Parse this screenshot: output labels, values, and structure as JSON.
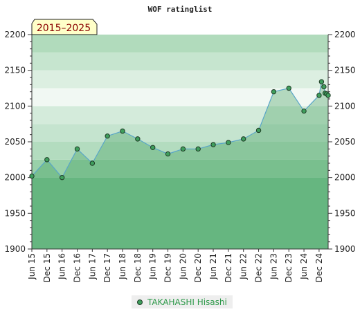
{
  "chart_data": {
    "type": "area",
    "title": "WOF ratinglist",
    "badge": "2015–2025",
    "ylim": [
      1900,
      2200
    ],
    "yticks": [
      1900,
      1950,
      2000,
      2050,
      2100,
      2150,
      2200
    ],
    "xlim": [
      2015.5,
      2025.3
    ],
    "xticks": [
      {
        "label": "Jun 15",
        "t": 2015.5
      },
      {
        "label": "Dec 15",
        "t": 2016.0
      },
      {
        "label": "Jun 16",
        "t": 2016.5
      },
      {
        "label": "Dec 16",
        "t": 2017.0
      },
      {
        "label": "Jun 17",
        "t": 2017.5
      },
      {
        "label": "Dec 17",
        "t": 2018.0
      },
      {
        "label": "Jun 18",
        "t": 2018.5
      },
      {
        "label": "Dec 18",
        "t": 2019.0
      },
      {
        "label": "Jun 19",
        "t": 2019.5
      },
      {
        "label": "Dec 19",
        "t": 2020.0
      },
      {
        "label": "Jun 20",
        "t": 2020.5
      },
      {
        "label": "Dec 20",
        "t": 2021.0
      },
      {
        "label": "Jun 21",
        "t": 2021.5
      },
      {
        "label": "Dec 21",
        "t": 2022.0
      },
      {
        "label": "Jun 22",
        "t": 2022.5
      },
      {
        "label": "Dec 22",
        "t": 2023.0
      },
      {
        "label": "Jun 23",
        "t": 2023.5
      },
      {
        "label": "Dec 23",
        "t": 2024.0
      },
      {
        "label": "Jun 24",
        "t": 2024.5
      },
      {
        "label": "Dec 24",
        "t": 2025.0
      }
    ],
    "series": [
      {
        "name": "TAKAHASHI Hisashi",
        "color": "#3f9e5d",
        "points": [
          {
            "t": 2015.5,
            "v": 2002
          },
          {
            "t": 2016.0,
            "v": 2025
          },
          {
            "t": 2016.5,
            "v": 2000
          },
          {
            "t": 2017.0,
            "v": 2040
          },
          {
            "t": 2017.5,
            "v": 2020
          },
          {
            "t": 2018.0,
            "v": 2058
          },
          {
            "t": 2018.5,
            "v": 2065
          },
          {
            "t": 2019.0,
            "v": 2054
          },
          {
            "t": 2019.5,
            "v": 2042
          },
          {
            "t": 2020.0,
            "v": 2033
          },
          {
            "t": 2020.5,
            "v": 2040
          },
          {
            "t": 2021.0,
            "v": 2040
          },
          {
            "t": 2021.5,
            "v": 2046
          },
          {
            "t": 2022.0,
            "v": 2049
          },
          {
            "t": 2022.5,
            "v": 2054
          },
          {
            "t": 2023.0,
            "v": 2066
          },
          {
            "t": 2023.5,
            "v": 2120
          },
          {
            "t": 2024.0,
            "v": 2125
          },
          {
            "t": 2024.5,
            "v": 2093
          },
          {
            "t": 2025.0,
            "v": 2115
          },
          {
            "t": 2025.08,
            "v": 2134
          },
          {
            "t": 2025.16,
            "v": 2127
          },
          {
            "t": 2025.2,
            "v": 2118
          },
          {
            "t": 2025.25,
            "v": 2117
          },
          {
            "t": 2025.3,
            "v": 2115
          }
        ]
      }
    ],
    "bands": [
      {
        "from": 1900,
        "to": 2000,
        "color": "#7cc494"
      },
      {
        "from": 2000,
        "to": 2025,
        "color": "#99d1a9"
      },
      {
        "from": 2025,
        "to": 2050,
        "color": "#b3dcbf"
      },
      {
        "from": 2050,
        "to": 2075,
        "color": "#c5e4cf"
      },
      {
        "from": 2075,
        "to": 2100,
        "color": "#d4ebdb"
      },
      {
        "from": 2100,
        "to": 2125,
        "color": "#f1f8f3"
      },
      {
        "from": 2125,
        "to": 2150,
        "color": "#dcefe1"
      },
      {
        "from": 2150,
        "to": 2175,
        "color": "#c6e5cf"
      },
      {
        "from": 2175,
        "to": 2200,
        "color": "#b1dbbc"
      }
    ]
  }
}
